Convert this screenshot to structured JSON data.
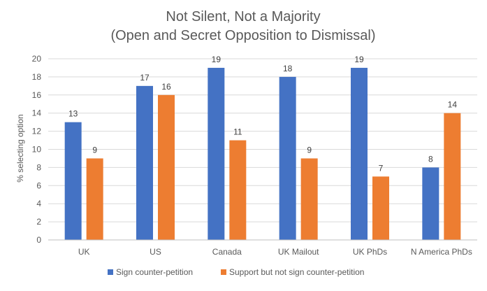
{
  "chart_data": {
    "type": "bar",
    "title": [
      "Not Silent, Not a Majority",
      "(Open and Secret Opposition to Dismissal)"
    ],
    "ylabel": "% selecting option",
    "xlabel": "",
    "categories": [
      "UK",
      "US",
      "Canada",
      "UK Mailout",
      "UK PhDs",
      "N America PhDs"
    ],
    "series": [
      {
        "name": "Sign counter-petition",
        "color": "#4472c4",
        "values": [
          13,
          17,
          19,
          18,
          19,
          8
        ]
      },
      {
        "name": "Support but not sign counter-petition",
        "color": "#ed7d31",
        "values": [
          9,
          16,
          11,
          9,
          7,
          14
        ]
      }
    ],
    "ylim": [
      0,
      20
    ],
    "yticks": [
      0,
      2,
      4,
      6,
      8,
      10,
      12,
      14,
      16,
      18,
      20
    ],
    "grid": true,
    "legend_position": "bottom",
    "data_labels": true
  }
}
